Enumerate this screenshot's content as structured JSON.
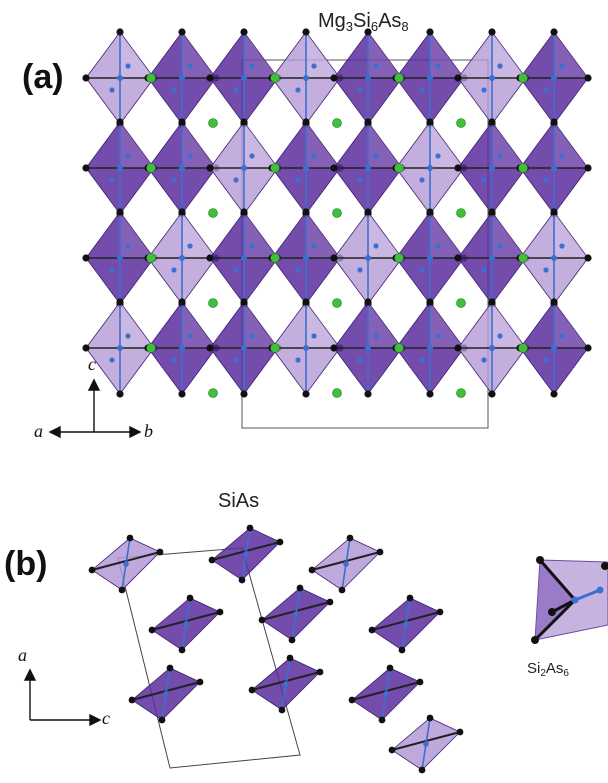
{
  "panel_a": {
    "letter": "(a)",
    "title": {
      "parts": [
        "Mg",
        "3",
        "Si",
        "6",
        "As",
        "8"
      ]
    },
    "axes": {
      "up": "c",
      "left": "a",
      "right": "b"
    }
  },
  "panel_b": {
    "letter": "(b)",
    "title": "SiAs",
    "axes": {
      "up": "a",
      "right": "c"
    },
    "inset_title": {
      "parts": [
        "Si",
        "2",
        "As",
        "6"
      ]
    }
  },
  "colors": {
    "octahedron_dark": "#5b2d9e",
    "octahedron_light": "#b49ad6",
    "si_atom": "#3b6fd1",
    "as_atom": "#111111",
    "mg_atom": "#3fbf3a"
  }
}
